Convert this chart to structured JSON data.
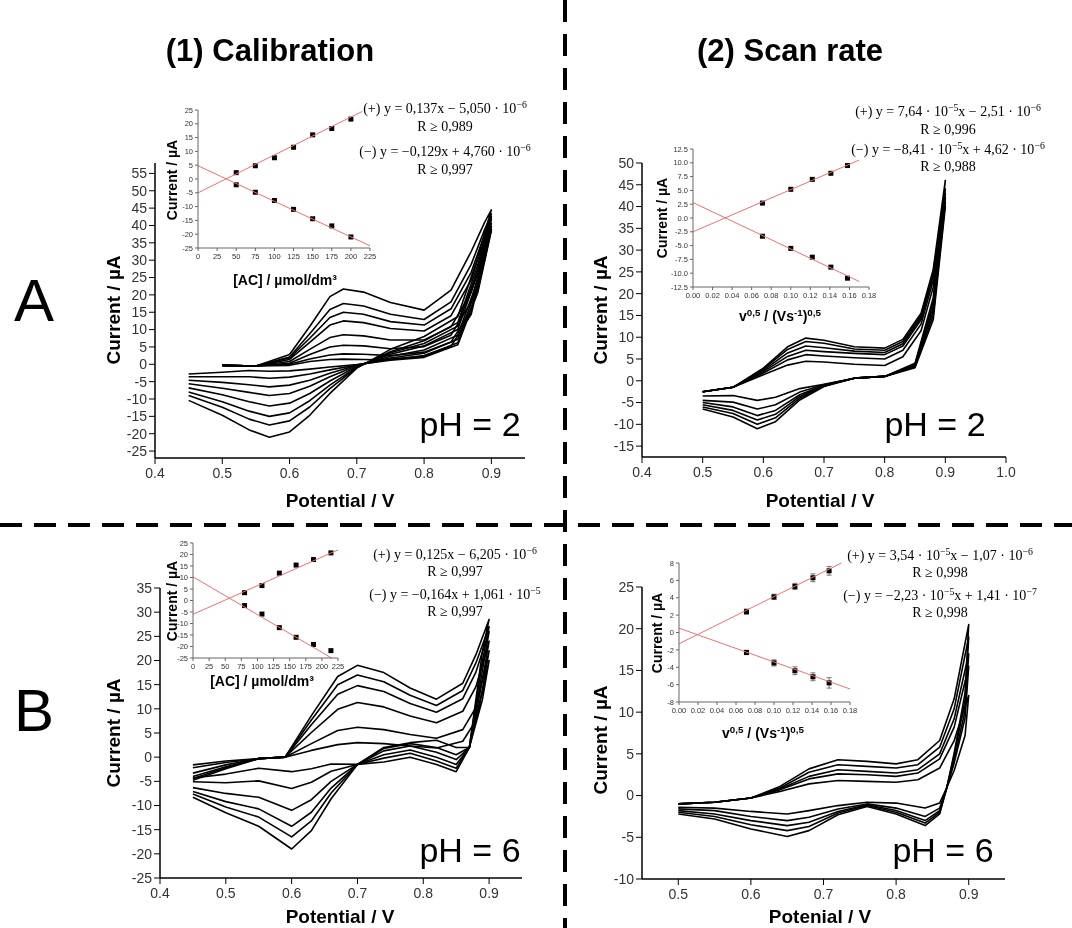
{
  "chart_data": [
    {
      "type": "line",
      "title": "(1) Calibration",
      "xlabel": "Potential / V",
      "ylabel": "Current / µA",
      "annotations": [
        "A",
        "pH = 2"
      ],
      "xlim": [
        0.4,
        0.95
      ],
      "ylim": [
        -27,
        58
      ],
      "xticks": [
        0.4,
        0.5,
        0.6,
        0.7,
        0.8,
        0.9
      ],
      "yticks": [
        -25,
        -20,
        -15,
        -10,
        -5,
        0,
        5,
        10,
        15,
        20,
        25,
        30,
        35,
        40,
        45,
        50,
        55
      ],
      "x": [
        0.5,
        0.55,
        0.6,
        0.63,
        0.66,
        0.68,
        0.71,
        0.75,
        0.8,
        0.84,
        0.87,
        0.89,
        0.9,
        0.88,
        0.85,
        0.8,
        0.75,
        0.7,
        0.66,
        0.63,
        0.6,
        0.57,
        0.54,
        0.5,
        0.45
      ],
      "series": [
        {
          "color": "#000000",
          "values": [
            -0.3,
            -0.5,
            -0.3,
            0.8,
            1.4,
            1.5,
            1.4,
            1.2,
            2.5,
            5.2,
            14.4,
            30.8,
            38.5,
            20.8,
            5.6,
            2,
            1.2,
            -0.1,
            -0.8,
            -1.4,
            -1.9,
            -2,
            -1.8,
            -2.3,
            -2.8
          ]
        },
        {
          "color": "#000000",
          "values": [
            -0.3,
            -0.5,
            0,
            1.5,
            2.7,
            3,
            2.9,
            2.5,
            3.5,
            6.4,
            15.7,
            31.5,
            38.9,
            21.5,
            6.2,
            2.4,
            1.5,
            -0.2,
            -1.6,
            -2.8,
            -3.7,
            -4,
            -3.6,
            -3.6,
            -3.6
          ]
        },
        {
          "color": "#000000",
          "values": [
            -0.3,
            -0.5,
            0.3,
            2.8,
            5,
            5.5,
            5.3,
            4.5,
            5.1,
            8.4,
            18,
            32.8,
            39.7,
            22.8,
            7.2,
            3.2,
            1.8,
            -0.3,
            -2.6,
            -4.6,
            -6,
            -6.5,
            -5.9,
            -5.2,
            -4.6
          ]
        },
        {
          "color": "#000000",
          "values": [
            -0.3,
            -0.5,
            0.8,
            4.3,
            7.7,
            8.5,
            8.2,
            7,
            7,
            10.8,
            20.7,
            34.3,
            40.6,
            24.3,
            8.4,
            4.1,
            2.3,
            -0.4,
            -3.6,
            -6.3,
            -8.4,
            -9,
            -8.1,
            -6.9,
            -5.6
          ]
        },
        {
          "color": "#000000",
          "values": [
            -0.3,
            -0.5,
            1.4,
            6.3,
            11.3,
            12.5,
            12,
            10.3,
            9.6,
            14,
            24.3,
            36.3,
            41.8,
            26.3,
            10,
            5.3,
            2.9,
            -0.6,
            -4.8,
            -8.4,
            -11.2,
            -12,
            -10.8,
            -8.8,
            -6.8
          ]
        },
        {
          "color": "#000000",
          "values": [
            -0.3,
            -0.5,
            1.8,
            7.5,
            13.5,
            15,
            14.4,
            12.3,
            11.3,
            16,
            26.5,
            37.5,
            42.5,
            27.5,
            11,
            6,
            3.3,
            -0.8,
            -6,
            -10.5,
            -14,
            -15,
            -13.5,
            -10.8,
            -8
          ]
        },
        {
          "color": "#000000",
          "values": [
            -0.3,
            -0.5,
            2.1,
            8.8,
            15.8,
            17.5,
            16.8,
            14.4,
            12.9,
            18,
            28.8,
            38.8,
            43.3,
            28.8,
            12,
            6.8,
            3.6,
            -0.9,
            -7,
            -12.3,
            -16.3,
            -17.5,
            -15.8,
            -12.4,
            -9
          ]
        },
        {
          "color": "#000000",
          "values": [
            -0.3,
            -0.5,
            2.8,
            10.9,
            19.5,
            21.7,
            20.8,
            17.8,
            15.6,
            21.4,
            32.5,
            40.9,
            44.5,
            30.9,
            13.7,
            8,
            4.3,
            -1.1,
            -8.4,
            -14.7,
            -19.5,
            -21,
            -18.9,
            -14.7,
            -10.4
          ]
        }
      ]
    },
    {
      "type": "scatter",
      "marker": "square",
      "xlabel": "[AC] / µmol/dm³",
      "ylabel": "Current / µA",
      "annotations": [
        "(+) y = 0,137x − 5,050 · 10$^{−6}$",
        "R ≥ 0,989",
        "(−) y = −0,129x + 4,760 · 10$^{−6}$",
        "R ≥ 0,997"
      ],
      "xlim": [
        0,
        225
      ],
      "ylim": [
        -25,
        25
      ],
      "xticks": [
        0,
        25,
        50,
        75,
        100,
        125,
        150,
        175,
        200,
        225
      ],
      "yticks": [
        -25,
        -20,
        -15,
        -10,
        -5,
        0,
        5,
        10,
        15,
        20,
        25
      ],
      "series": [
        {
          "color": "#000000",
          "x": [
            50,
            75,
            100,
            125,
            150,
            175,
            200
          ],
          "values": [
            2.3,
            4.8,
            7.7,
            11.5,
            16,
            18.3,
            21.7
          ]
        },
        {
          "color": "#000000",
          "x": [
            50,
            75,
            100,
            125,
            150,
            175,
            200
          ],
          "values": [
            -2.1,
            -4.8,
            -7.8,
            -11,
            -14.4,
            -17,
            -21
          ]
        },
        {
          "type": "line",
          "marker": "none",
          "color": "#f07070",
          "x": [
            0,
            215
          ],
          "values": [
            -5,
            24.5
          ]
        },
        {
          "type": "line",
          "marker": "none",
          "color": "#f07070",
          "x": [
            0,
            225
          ],
          "values": [
            4.8,
            -24.2
          ]
        }
      ]
    },
    {
      "type": "line",
      "title": "(2) Scan rate",
      "xlabel": "Potential / V",
      "ylabel": "Current / µA",
      "annotations": [
        "pH = 2"
      ],
      "xlim": [
        0.4,
        1.0
      ],
      "ylim": [
        -17.5,
        50
      ],
      "xticks": [
        0.4,
        0.5,
        0.6,
        0.7,
        0.8,
        0.9,
        {
          "value": 1,
          "label": "1.0"
        }
      ],
      "yticks": [
        -15,
        -10,
        -5,
        0,
        5,
        10,
        15,
        20,
        25,
        30,
        35,
        40,
        45,
        50
      ],
      "x": [
        0.5,
        0.55,
        0.6,
        0.64,
        0.67,
        0.7,
        0.75,
        0.8,
        0.83,
        0.86,
        0.88,
        0.9,
        0.88,
        0.85,
        0.8,
        0.75,
        0.7,
        0.66,
        0.62,
        0.59,
        0.55,
        0.5
      ],
      "series": [
        {
          "color": "#000000",
          "values": [
            -2.5,
            -1.5,
            1.4,
            3.6,
            4.5,
            4.3,
            3.8,
            3.5,
            5.5,
            11.5,
            21.5,
            40,
            14,
            3,
            1,
            0.6,
            -0.8,
            -1.8,
            -3.8,
            -4.5,
            -3.4,
            -3.5
          ]
        },
        {
          "color": "#000000",
          "values": [
            -2.5,
            -1.5,
            1.8,
            4.8,
            6,
            5.7,
            5.3,
            5,
            7,
            13,
            23,
            41,
            15,
            3.2,
            1,
            0.6,
            -0.9,
            -2.6,
            -5.5,
            -6.5,
            -4.9,
            -4.5
          ]
        },
        {
          "color": "#000000",
          "values": [
            -2.5,
            -1.5,
            2.1,
            5.6,
            7,
            6.7,
            6.3,
            6,
            8,
            14,
            24,
            42,
            16,
            3.4,
            1,
            0.6,
            -1,
            -3.2,
            -6.8,
            -8,
            -6,
            -5
          ]
        },
        {
          "color": "#000000",
          "values": [
            -2.5,
            -1.5,
            2.4,
            6.4,
            8,
            7.6,
            6.8,
            6.5,
            8.5,
            14.5,
            24.5,
            43,
            17,
            3.6,
            1,
            0.6,
            -1.1,
            -3.6,
            -7.7,
            -9,
            -6.8,
            -5.5
          ]
        },
        {
          "color": "#000000",
          "values": [
            -2.5,
            -1.5,
            2.7,
            7.2,
            9,
            8.6,
            7.3,
            7,
            9,
            15,
            25,
            44,
            18,
            3.8,
            1,
            0.6,
            -1.2,
            -4,
            -8.5,
            -10,
            -7.5,
            -6
          ]
        },
        {
          "color": "#000000",
          "values": [
            -2.5,
            -1.5,
            2.9,
            7.8,
            9.8,
            9.3,
            7.8,
            7.5,
            9.5,
            15.5,
            25.5,
            46,
            19,
            4,
            1,
            0.6,
            -1.3,
            -4.4,
            -9.4,
            -11,
            -8.3,
            -6.5
          ]
        }
      ]
    },
    {
      "type": "scatter",
      "marker": "square",
      "xlabel": "v$^{0,5}$ / (Vs$^{-1}$)$^{0,5}$",
      "ylabel": "Current / µA",
      "annotations": [
        "(+) y = 7,64 · 10$^{−5}$x − 2,51 · 10$^{−6}$",
        "R ≥ 0,996",
        "(−) y = −8,41 · 10$^{−5}$x + 4,62 · 10$^{−6}$",
        "R ≥ 0,988"
      ],
      "xlim": [
        0,
        0.18
      ],
      "ylim": [
        -12.5,
        12.5
      ],
      "xticks": [
        {
          "value": 0,
          "label": "0.00"
        },
        {
          "value": 0.02,
          "label": "0.02"
        },
        {
          "value": 0.04,
          "label": "0.04"
        },
        {
          "value": 0.06,
          "label": "0.06"
        },
        {
          "value": 0.08,
          "label": "0.08"
        },
        {
          "value": 0.1,
          "label": "0.10"
        },
        {
          "value": 0.12,
          "label": "0.12"
        },
        {
          "value": 0.14,
          "label": "0.14"
        },
        {
          "value": 0.16,
          "label": "0.16"
        },
        {
          "value": 0.18,
          "label": "0.18"
        }
      ],
      "yticks": [
        {
          "value": -12.5,
          "label": "-12.5"
        },
        {
          "value": -10,
          "label": "-10.0"
        },
        {
          "value": -7.5,
          "label": "-7.5"
        },
        {
          "value": -5,
          "label": "-5.0"
        },
        {
          "value": -2.5,
          "label": "-2.5"
        },
        {
          "value": 0,
          "label": "0.0"
        },
        {
          "value": 2.5,
          "label": "2.5"
        },
        {
          "value": 5,
          "label": "5.0"
        },
        {
          "value": 7.5,
          "label": "7.5"
        },
        {
          "value": 10,
          "label": "10.0"
        },
        {
          "value": 12.5,
          "label": "12.5"
        }
      ],
      "series": [
        {
          "color": "#000000",
          "x": [
            0.071,
            0.1,
            0.122,
            0.141,
            0.158
          ],
          "values": [
            2.7,
            5.2,
            7,
            8.1,
            9.5
          ]
        },
        {
          "color": "#000000",
          "x": [
            0.071,
            0.1,
            0.122,
            0.141,
            0.158
          ],
          "values": [
            -3.3,
            -5.5,
            -7.1,
            -8.9,
            -10.9
          ]
        },
        {
          "type": "line",
          "marker": "none",
          "color": "#f07070",
          "x": [
            0,
            0.17
          ],
          "values": [
            -2.5,
            10.5
          ]
        },
        {
          "type": "line",
          "marker": "none",
          "color": "#f07070",
          "x": [
            0,
            0.17
          ],
          "values": [
            2.8,
            -11.5
          ]
        }
      ]
    },
    {
      "type": "line",
      "xlabel": "Potential / V",
      "ylabel": "Current / µA",
      "annotations": [
        "B",
        "pH = 6"
      ],
      "xlim": [
        0.4,
        0.95
      ],
      "ylim": [
        -25,
        35
      ],
      "xticks": [
        0.4,
        0.5,
        0.6,
        0.7,
        0.8,
        0.9
      ],
      "yticks": [
        -25,
        -20,
        -15,
        -10,
        -5,
        0,
        5,
        10,
        15,
        20,
        25,
        30,
        35
      ],
      "x": [
        0.45,
        0.5,
        0.55,
        0.59,
        0.63,
        0.67,
        0.7,
        0.74,
        0.78,
        0.82,
        0.86,
        0.88,
        0.9,
        0.89,
        0.87,
        0.85,
        0.82,
        0.78,
        0.74,
        0.7,
        0.66,
        0.63,
        0.6,
        0.55,
        0.5,
        0.45
      ],
      "series": [
        {
          "color": "#000000",
          "values": [
            -1.6,
            -0.8,
            -0.3,
            0,
            1.4,
            2.6,
            3,
            2.8,
            2.3,
            1.9,
            3.3,
            7.6,
            20,
            12,
            2,
            2,
            3.5,
            3,
            2,
            -1.5,
            -1.4,
            -2.4,
            -3,
            -2.3,
            -3.5,
            -4.3
          ]
        },
        {
          "color": "#000000",
          "values": [
            -2.2,
            -1.1,
            -0.3,
            0,
            2.8,
            5.5,
            6.2,
            5.7,
            4.7,
            3.9,
            5.7,
            10.3,
            22,
            14,
            2,
            0.5,
            2,
            2.8,
            1.8,
            -1.5,
            -2.9,
            -5.2,
            -6.5,
            -4.9,
            -5.3,
            -5.1
          ]
        },
        {
          "color": "#000000",
          "values": [
            -3.3,
            -1.6,
            -0.3,
            0,
            5.1,
            9.9,
            11.3,
            10.4,
            8.5,
            7.1,
            9.5,
            14.6,
            24,
            16,
            2,
            -0.5,
            1,
            2.3,
            1.3,
            -1.5,
            -5,
            -8.8,
            -11,
            -8.3,
            -7.5,
            -6.3
          ]
        },
        {
          "color": "#000000",
          "values": [
            -4,
            -2,
            -0.3,
            0,
            6.7,
            13,
            14.8,
            13.6,
            11.1,
            9.3,
            12.1,
            17.6,
            26,
            18,
            2,
            -1.5,
            0,
            1.5,
            0.5,
            -1.5,
            -6.4,
            -11.4,
            -14.3,
            -10.7,
            -9.2,
            -7.1
          ]
        },
        {
          "color": "#000000",
          "values": [
            -4.4,
            -2.2,
            -0.3,
            0,
            7.7,
            15,
            17,
            15.6,
            12.8,
            10.7,
            13.8,
            19.5,
            27,
            20,
            2,
            -2.3,
            -0.8,
            0.8,
            -0.2,
            -1.5,
            -7.4,
            -13.2,
            -16.5,
            -12.4,
            -10.3,
            -7.6
          ]
        },
        {
          "color": "#000000",
          "values": [
            -4.8,
            -2.4,
            -0.3,
            0,
            8.6,
            16.7,
            19,
            17.5,
            14.3,
            12,
            15.3,
            21.2,
            28.5,
            22,
            2,
            -3,
            -1.5,
            0,
            -1,
            -1.5,
            -8.6,
            -15.2,
            -19,
            -14.3,
            -11.5,
            -8.3
          ]
        }
      ]
    },
    {
      "type": "scatter",
      "marker": "square",
      "xlabel": "[AC] / µmol/dm³",
      "ylabel": "Current / µA",
      "annotations": [
        "(+) y = 0,125x − 6,205 · 10$^{−6}$",
        "R ≥ 0,997",
        "(−) y = −0,164x + 1,061 · 10$^{−5}$",
        "R ≥ 0,997"
      ],
      "xlim": [
        0,
        225
      ],
      "ylim": [
        -25,
        25
      ],
      "xticks": [
        0,
        25,
        50,
        75,
        100,
        125,
        150,
        175,
        200,
        225
      ],
      "yticks": [
        -25,
        -20,
        -15,
        -10,
        -5,
        0,
        5,
        10,
        15,
        20,
        25
      ],
      "series": [
        {
          "color": "#000000",
          "x": [
            80,
            107,
            134,
            160,
            187,
            214
          ],
          "values": [
            3.4,
            6.5,
            11.9,
            15.4,
            17.8,
            20.7
          ]
        },
        {
          "color": "#000000",
          "x": [
            80,
            107,
            134,
            160,
            187,
            214
          ],
          "values": [
            -2.2,
            -5.9,
            -11.8,
            -16,
            -19.1,
            -21.8
          ]
        },
        {
          "type": "line",
          "marker": "none",
          "color": "#f07070",
          "x": [
            0,
            225
          ],
          "values": [
            -6,
            22
          ]
        },
        {
          "type": "line",
          "marker": "none",
          "color": "#f07070",
          "x": [
            0,
            215
          ],
          "values": [
            10.3,
            -25
          ]
        }
      ]
    },
    {
      "type": "line",
      "xlabel": "Potenial / V",
      "ylabel": "Current / µA",
      "annotations": [
        "pH = 6"
      ],
      "xlim": [
        0.45,
        0.95
      ],
      "ylim": [
        -10,
        25
      ],
      "xticks": [
        0.5,
        0.6,
        0.7,
        0.8,
        0.9
      ],
      "yticks": [
        -10,
        -5,
        0,
        5,
        10,
        15,
        20,
        25
      ],
      "x": [
        0.5,
        0.55,
        0.6,
        0.64,
        0.68,
        0.72,
        0.76,
        0.8,
        0.83,
        0.86,
        0.88,
        0.9,
        0.895,
        0.88,
        0.87,
        0.86,
        0.84,
        0.8,
        0.76,
        0.72,
        0.68,
        0.65,
        0.6,
        0.55,
        0.5
      ],
      "series": [
        {
          "color": "#000000",
          "values": [
            -1,
            -0.8,
            -0.3,
            0.5,
            1.4,
            1.8,
            1.7,
            1.6,
            1.9,
            3.3,
            6.6,
            12,
            7.2,
            3,
            1,
            -0.9,
            -1.5,
            -0.9,
            -0.8,
            -1.2,
            -1.8,
            -2.2,
            -1.9,
            -1.5,
            -1.4
          ]
        },
        {
          "color": "#000000",
          "values": [
            -1,
            -0.8,
            -0.3,
            0.7,
            2,
            2.6,
            2.5,
            2.3,
            2.7,
            4.4,
            8.2,
            15.5,
            9.3,
            3.9,
            1,
            -1.5,
            -2.5,
            -1.5,
            -1,
            -1.6,
            -2.6,
            -3,
            -2.5,
            -1.8,
            -1.6
          ]
        },
        {
          "color": "#000000",
          "values": [
            -1,
            -0.8,
            -0.3,
            0.8,
            2.3,
            3.1,
            2.9,
            2.7,
            3.1,
            5,
            9.2,
            17,
            10.2,
            4.3,
            1,
            -1.8,
            -3,
            -1.8,
            -1.1,
            -1.9,
            -3.2,
            -3.6,
            -3,
            -2.2,
            -1.8
          ]
        },
        {
          "color": "#000000",
          "values": [
            -1,
            -0.8,
            -0.3,
            0.9,
            2.8,
            3.7,
            3.5,
            3.3,
            3.7,
            5.8,
            10.4,
            19,
            11.4,
            4.8,
            1,
            -2,
            -3.3,
            -2,
            -1.2,
            -2.1,
            -3.7,
            -4.2,
            -3.5,
            -2.5,
            -2
          ]
        },
        {
          "color": "#000000",
          "values": [
            -1,
            -0.8,
            -0.3,
            1.1,
            3.2,
            4.3,
            4.1,
            3.8,
            4.3,
            6.6,
            11.6,
            20.5,
            12.3,
            5.1,
            1,
            -2.2,
            -3.6,
            -2.2,
            -1.3,
            -2.3,
            -4.2,
            -4.9,
            -4,
            -2.8,
            -2.2
          ]
        }
      ]
    },
    {
      "type": "scatter",
      "marker": "square",
      "xlabel": "v$^{0,5}$ / (Vs$^{-1}$)$^{0,5}$",
      "ylabel": "Current / µA",
      "annotations": [
        "(+) y = 3,54 · 10$^{−5}$x − 1,07 · 10$^{−6}$",
        "R ≥ 0,998",
        "(−) y = −2,23 · 10$^{−5}$x + 1,41 · 10$^{−7}$",
        "R ≥ 0,998"
      ],
      "xlim": [
        0,
        0.18
      ],
      "ylim": [
        -8,
        8
      ],
      "xticks": [
        {
          "value": 0,
          "label": "0.00"
        },
        {
          "value": 0.02,
          "label": "0.02"
        },
        {
          "value": 0.04,
          "label": "0.04"
        },
        {
          "value": 0.06,
          "label": "0.06"
        },
        {
          "value": 0.08,
          "label": "0.08"
        },
        {
          "value": 0.1,
          "label": "0.10"
        },
        {
          "value": 0.12,
          "label": "0.12"
        },
        {
          "value": 0.14,
          "label": "0.14"
        },
        {
          "value": 0.16,
          "label": "0.16"
        },
        {
          "value": 0.18,
          "label": "0.18"
        }
      ],
      "yticks": [
        -8,
        -6,
        -4,
        -2,
        0,
        2,
        4,
        6,
        8
      ],
      "series": [
        {
          "color": "#000000",
          "x": [
            0.071,
            0.1,
            0.122,
            0.141,
            0.158
          ],
          "values": [
            2.4,
            4.1,
            5.3,
            6.3,
            7.1
          ],
          "errors": [
            0.3,
            0.3,
            0.35,
            0.45,
            0.5
          ]
        },
        {
          "color": "#000000",
          "x": [
            0.071,
            0.1,
            0.122,
            0.141,
            0.158
          ],
          "values": [
            -2.3,
            -3.5,
            -4.4,
            -5.1,
            -5.8
          ],
          "errors": [
            0.25,
            0.35,
            0.45,
            0.45,
            0.6
          ]
        },
        {
          "type": "line",
          "marker": "none",
          "color": "#f07070",
          "x": [
            0,
            0.171
          ],
          "values": [
            -1.3,
            8
          ]
        },
        {
          "type": "line",
          "marker": "none",
          "color": "#f07070",
          "x": [
            0,
            0.18
          ],
          "values": [
            0.5,
            -6.5
          ]
        }
      ]
    }
  ]
}
